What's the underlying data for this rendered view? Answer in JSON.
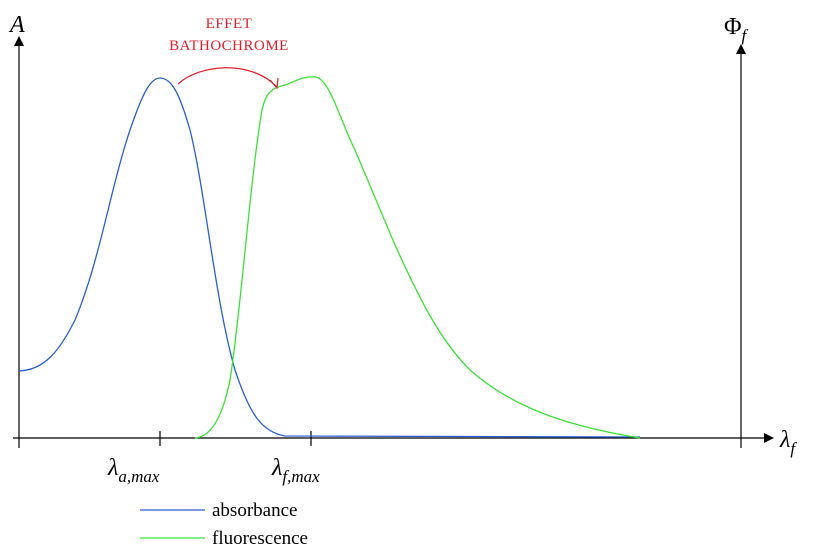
{
  "axes": {
    "left": {
      "symbol": "A"
    },
    "right": {
      "symbol": "Φ",
      "sub": "f"
    },
    "x": {
      "symbol": "λ",
      "sub": "f"
    },
    "ticks": [
      {
        "symbol": "λ",
        "sub": "a,max"
      },
      {
        "symbol": "λ",
        "sub": "f,max"
      }
    ]
  },
  "annotation": {
    "line1": "EFFET",
    "line2": "BATHOCHROME"
  },
  "legend": [
    "absorbance",
    "fluorescence"
  ]
}
